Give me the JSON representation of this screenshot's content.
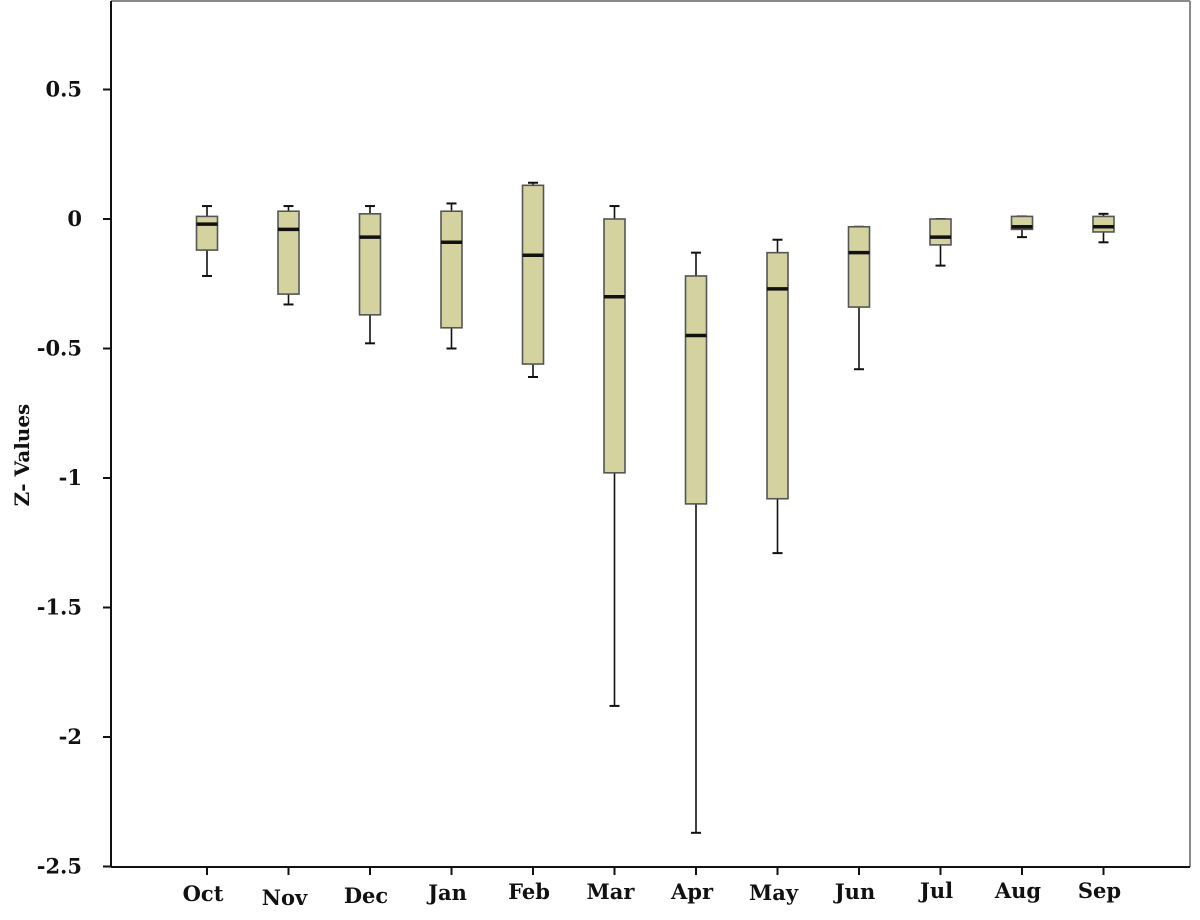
{
  "chart_data": {
    "type": "boxplot",
    "title": "",
    "xlabel": "",
    "ylabel": "Z- Values",
    "ylim": [
      -2.5,
      0.8
    ],
    "yticks": [
      0.5,
      0,
      -0.5,
      -1,
      -1.5,
      -2,
      -2.5
    ],
    "ytick_labels": [
      "0.5",
      "0",
      "-0.5",
      "-1",
      "-1.5",
      "-2",
      "-2.5"
    ],
    "grid": false,
    "box_color": "#d4d3a0",
    "categories": [
      "Oct",
      "Nov",
      "Dec",
      "Jan",
      "Feb",
      "Mar",
      "Apr",
      "May",
      "Jun",
      "Jul",
      "Aug",
      "Sep"
    ],
    "boxes": [
      {
        "min": -0.22,
        "q1": -0.12,
        "median": -0.02,
        "q3": 0.01,
        "max": 0.05
      },
      {
        "min": -0.33,
        "q1": -0.29,
        "median": -0.04,
        "q3": 0.03,
        "max": 0.05
      },
      {
        "min": -0.48,
        "q1": -0.37,
        "median": -0.07,
        "q3": 0.02,
        "max": 0.05
      },
      {
        "min": -0.5,
        "q1": -0.42,
        "median": -0.09,
        "q3": 0.03,
        "max": 0.06
      },
      {
        "min": -0.61,
        "q1": -0.56,
        "median": -0.14,
        "q3": 0.13,
        "max": 0.14
      },
      {
        "min": -1.88,
        "q1": -0.98,
        "median": -0.3,
        "q3": 0.0,
        "max": 0.05
      },
      {
        "min": -2.37,
        "q1": -1.1,
        "median": -0.45,
        "q3": -0.22,
        "max": -0.13
      },
      {
        "min": -1.29,
        "q1": -1.08,
        "median": -0.27,
        "q3": -0.13,
        "max": -0.08
      },
      {
        "min": -0.58,
        "q1": -0.34,
        "median": -0.13,
        "q3": -0.03,
        "max": -0.03
      },
      {
        "min": -0.18,
        "q1": -0.1,
        "median": -0.07,
        "q3": 0.0,
        "max": 0.0
      },
      {
        "min": -0.07,
        "q1": -0.04,
        "median": -0.03,
        "q3": 0.01,
        "max": 0.01
      },
      {
        "min": -0.09,
        "q1": -0.05,
        "median": -0.03,
        "q3": 0.01,
        "max": 0.02
      }
    ]
  }
}
